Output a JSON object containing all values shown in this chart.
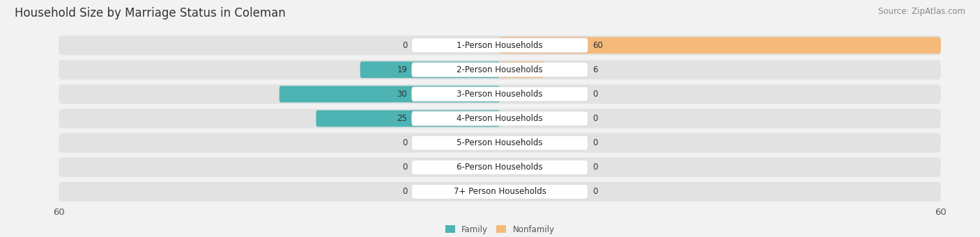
{
  "title": "Household Size by Marriage Status in Coleman",
  "source": "Source: ZipAtlas.com",
  "categories": [
    "7+ Person Households",
    "6-Person Households",
    "5-Person Households",
    "4-Person Households",
    "3-Person Households",
    "2-Person Households",
    "1-Person Households"
  ],
  "family": [
    0,
    0,
    0,
    25,
    30,
    19,
    0
  ],
  "nonfamily": [
    0,
    0,
    0,
    0,
    0,
    6,
    60
  ],
  "family_color": "#4db3b3",
  "nonfamily_color": "#f5b97a",
  "max_val": 60,
  "bg_color": "#f2f2f2",
  "bar_bg_color": "#e2e2e2",
  "label_bg_color": "#ffffff",
  "title_fontsize": 12,
  "source_fontsize": 8.5,
  "tick_fontsize": 9.5,
  "cat_fontsize": 8.5,
  "value_fontsize": 8.5,
  "legend_family": "Family",
  "legend_nonfamily": "Nonfamily"
}
